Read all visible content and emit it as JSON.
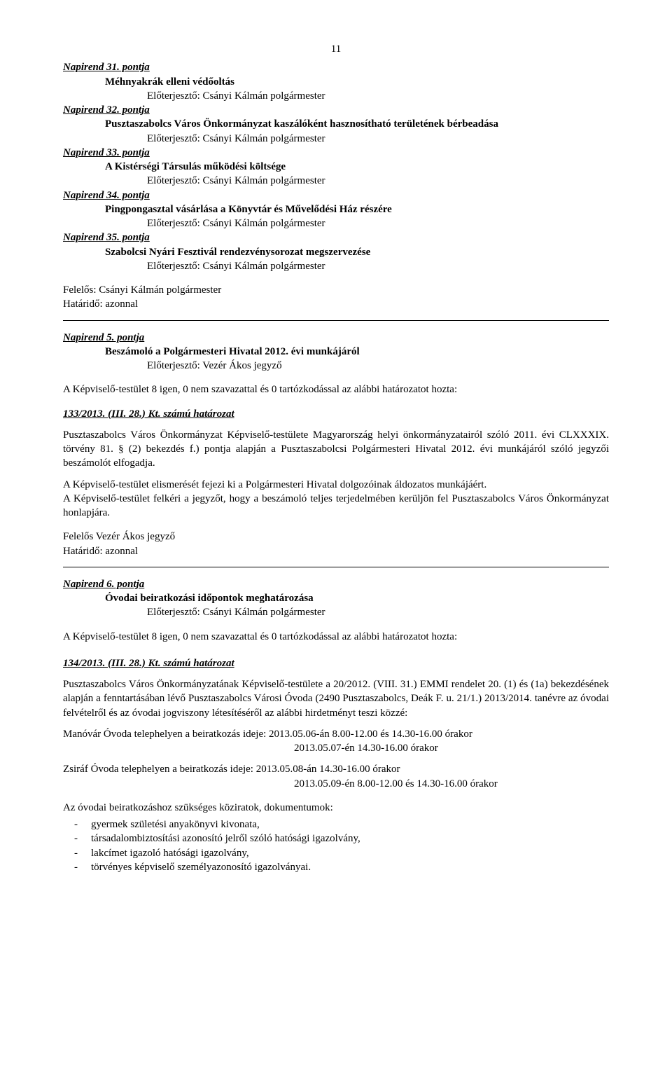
{
  "page_number": "11",
  "napirend_list": [
    {
      "title": "Napirend 31. pontja",
      "subject": "Méhnyakrák elleni védőoltás",
      "presenter": "Előterjesztő: Csányi Kálmán polgármester"
    },
    {
      "title": "Napirend 32. pontja",
      "subject": "Pusztaszabolcs Város Önkormányzat kaszálóként hasznosítható területének bérbeadása",
      "presenter": "Előterjesztő: Csányi Kálmán polgármester"
    },
    {
      "title": "Napirend 33. pontja",
      "subject": "A Kistérségi Társulás működési költsége",
      "presenter": "Előterjesztő: Csányi Kálmán polgármester"
    },
    {
      "title": "Napirend 34. pontja",
      "subject": "Pingpongasztal vásárlása a Könyvtár és Művelődési Ház részére",
      "presenter": "Előterjesztő: Csányi Kálmán polgármester"
    },
    {
      "title": "Napirend 35. pontja",
      "subject": "Szabolcsi Nyári Fesztivál rendezvénysorozat megszervezése",
      "presenter": "Előterjesztő: Csányi Kálmán polgármester"
    }
  ],
  "felelos1": "Felelős: Csányi Kálmán polgármester",
  "hatarido1": "Határidő: azonnal",
  "section5": {
    "title": "Napirend 5. pontja",
    "subject": "Beszámoló a Polgármesteri Hivatal 2012. évi munkájáról",
    "presenter": "Előterjesztő: Vezér Ákos jegyző",
    "vote": "A Képviselő-testület 8 igen, 0 nem szavazattal és 0 tartózkodással az alábbi határozatot hozta:",
    "hatarozat": "133/2013. (III. 28.) Kt. számú határozat",
    "paras": [
      "Pusztaszabolcs Város Önkormányzat Képviselő-testülete Magyarország helyi önkormányzatairól szóló 2011. évi CLXXXIX. törvény 81. § (2) bekezdés f.) pontja alapján a Pusztaszabolcsi Polgármesteri Hivatal 2012. évi munkájáról szóló jegyzői beszámolót elfogadja.",
      "A Képviselő-testület elismerését fejezi ki a Polgármesteri Hivatal dolgozóinak áldozatos munkájáért.",
      "A Képviselő-testület felkéri a jegyzőt, hogy a beszámoló teljes terjedelmében kerüljön fel Pusztaszabolcs Város Önkormányzat honlapjára."
    ],
    "felelos": "Felelős Vezér Ákos jegyző",
    "hatarido": "Határidő: azonnal"
  },
  "section6": {
    "title": "Napirend 6. pontja",
    "subject": "Óvodai beiratkozási időpontok meghatározása",
    "presenter": "Előterjesztő: Csányi Kálmán polgármester",
    "vote": "A Képviselő-testület 8 igen, 0 nem szavazattal és 0 tartózkodással az alábbi határozatot hozta:",
    "hatarozat": "134/2013. (III. 28.) Kt. számú határozat",
    "para1": "Pusztaszabolcs Város Önkormányzatának Képviselő-testülete a 20/2012. (VIII. 31.) EMMI rendelet 20. (1) és (1a) bekezdésének alapján a fenntartásában lévő Pusztaszabolcs Városi Óvoda (2490 Pusztaszabolcs, Deák F. u. 21/1.) 2013/2014. tanévre az óvodai felvételről és az óvodai jogviszony létesítéséről az alábbi hirdetményt teszi közzé:",
    "manovar_line1": "Manóvár Óvoda telephelyen a beiratkozás ideje: 2013.05.06-án 8.00-12.00 és 14.30-16.00 órakor",
    "manovar_line2": "2013.05.07-én 14.30-16.00 órakor",
    "zsiraf_line1": "Zsiráf Óvoda telephelyen a beiratkozás ideje: 2013.05.08-án 14.30-16.00 órakor",
    "zsiraf_line2": "2013.05.09-én 8.00-12.00 és 14.30-16.00 órakor",
    "docs_intro": "Az óvodai beiratkozáshoz szükséges köziratok, dokumentumok:",
    "docs": [
      "gyermek születési anyakönyvi kivonata,",
      "társadalombiztosítási azonosító jelről szóló hatósági igazolvány,",
      "lakcímet igazoló hatósági igazolvány,",
      "törvényes képviselő személyazonosító igazolványai."
    ]
  }
}
